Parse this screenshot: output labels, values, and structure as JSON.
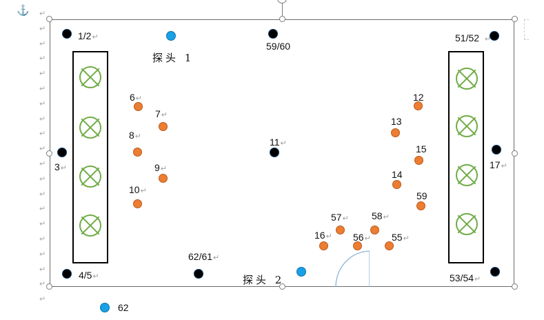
{
  "return_mark": "↵",
  "anchor_icon": "anchor-icon",
  "probes": {
    "probe1": "探头 1",
    "probe2": "探头 2"
  },
  "points": [
    {
      "id": "p1-2",
      "label": "1/2",
      "kind": "black"
    },
    {
      "id": "p59-60",
      "label": "59/60",
      "kind": "black"
    },
    {
      "id": "p51-52",
      "label": "51/52",
      "kind": "black"
    },
    {
      "id": "p3",
      "label": "3",
      "kind": "black"
    },
    {
      "id": "p11",
      "label": "11",
      "kind": "black"
    },
    {
      "id": "p17",
      "label": "17",
      "kind": "black"
    },
    {
      "id": "p4-5",
      "label": "4/5",
      "kind": "black"
    },
    {
      "id": "p62-61",
      "label": "62/61",
      "kind": "black"
    },
    {
      "id": "p53-54",
      "label": "53/54",
      "kind": "black"
    },
    {
      "id": "p6",
      "label": "6",
      "kind": "orange"
    },
    {
      "id": "p7",
      "label": "7",
      "kind": "orange"
    },
    {
      "id": "p8",
      "label": "8",
      "kind": "orange"
    },
    {
      "id": "p9",
      "label": "9",
      "kind": "orange"
    },
    {
      "id": "p10",
      "label": "10",
      "kind": "orange"
    },
    {
      "id": "p12",
      "label": "12",
      "kind": "orange"
    },
    {
      "id": "p13",
      "label": "13",
      "kind": "orange"
    },
    {
      "id": "p15",
      "label": "15",
      "kind": "orange"
    },
    {
      "id": "p14",
      "label": "14",
      "kind": "orange"
    },
    {
      "id": "p59",
      "label": "59",
      "kind": "orange"
    },
    {
      "id": "p57",
      "label": "57",
      "kind": "orange"
    },
    {
      "id": "p58",
      "label": "58",
      "kind": "orange"
    },
    {
      "id": "p16",
      "label": "16",
      "kind": "orange"
    },
    {
      "id": "p56",
      "label": "56",
      "kind": "orange"
    },
    {
      "id": "p55",
      "label": "55",
      "kind": "orange"
    },
    {
      "id": "p62",
      "label": "62",
      "kind": "blue"
    }
  ],
  "colors": {
    "black_point": "#000000",
    "orange_point": "#ed7d31",
    "blue_probe": "#18a1e6",
    "fixture_green": "#6fac46",
    "frame": "#6b6b6b"
  }
}
